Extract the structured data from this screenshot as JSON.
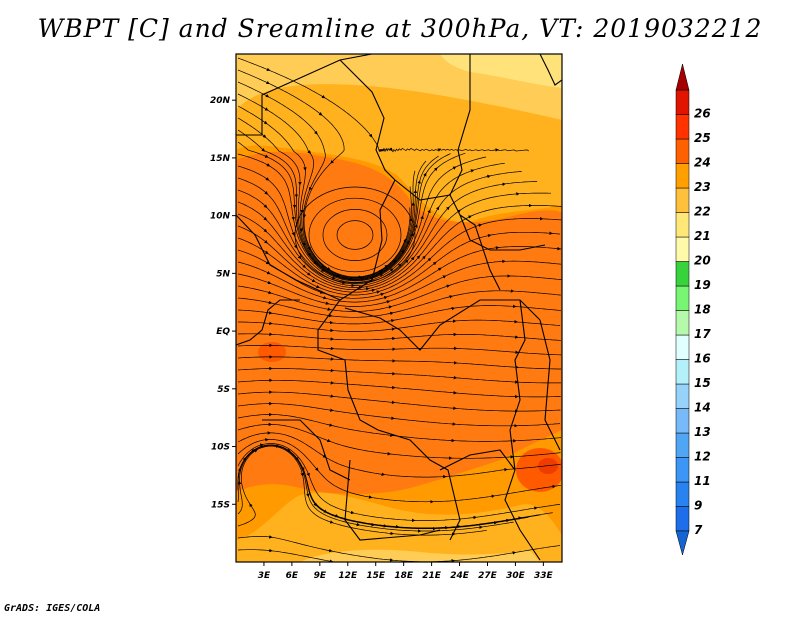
{
  "title": "WBPT [C] and Sreamline at 300hPa, VT: 2019032212",
  "credit": "GrADS: IGES/COLA",
  "map": {
    "lat_ticks": [
      {
        "label": "20N",
        "lat": 20
      },
      {
        "label": "15N",
        "lat": 15
      },
      {
        "label": "10N",
        "lat": 10
      },
      {
        "label": "5N",
        "lat": 5
      },
      {
        "label": "EQ",
        "lat": 0
      },
      {
        "label": "5S",
        "lat": -5
      },
      {
        "label": "10S",
        "lat": -10
      },
      {
        "label": "15S",
        "lat": -15
      }
    ],
    "lon_ticks": [
      {
        "label": "3E",
        "lon": 3
      },
      {
        "label": "6E",
        "lon": 6
      },
      {
        "label": "9E",
        "lon": 9
      },
      {
        "label": "12E",
        "lon": 12
      },
      {
        "label": "15E",
        "lon": 15
      },
      {
        "label": "18E",
        "lon": 18
      },
      {
        "label": "21E",
        "lon": 21
      },
      {
        "label": "24E",
        "lon": 24
      },
      {
        "label": "27E",
        "lon": 27
      },
      {
        "label": "30E",
        "lon": 30
      },
      {
        "label": "33E",
        "lon": 33
      }
    ],
    "lat_range": [
      -20,
      24
    ],
    "lon_range": [
      0,
      35
    ]
  },
  "colorbar": {
    "levels": [
      {
        "label": "7",
        "color": "#1e6eeb"
      },
      {
        "label": "9",
        "color": "#2882f0"
      },
      {
        "label": "11",
        "color": "#3c96f5"
      },
      {
        "label": "12",
        "color": "#50a5f5"
      },
      {
        "label": "13",
        "color": "#78b9fa"
      },
      {
        "label": "14",
        "color": "#96d2fa"
      },
      {
        "label": "15",
        "color": "#b4f0fa"
      },
      {
        "label": "16",
        "color": "#e1ffff"
      },
      {
        "label": "17",
        "color": "#b4faaa"
      },
      {
        "label": "18",
        "color": "#78f573"
      },
      {
        "label": "19",
        "color": "#37d23c"
      },
      {
        "label": "20",
        "color": "#fffaaa"
      },
      {
        "label": "21",
        "color": "#ffe878"
      },
      {
        "label": "22",
        "color": "#ffc03c"
      },
      {
        "label": "23",
        "color": "#ffa000"
      },
      {
        "label": "24",
        "color": "#ff6000"
      },
      {
        "label": "25",
        "color": "#ff3200"
      },
      {
        "label": "26",
        "color": "#e11400"
      }
    ],
    "top_color": "#a50000",
    "bottom_color": "#1464d2"
  }
}
